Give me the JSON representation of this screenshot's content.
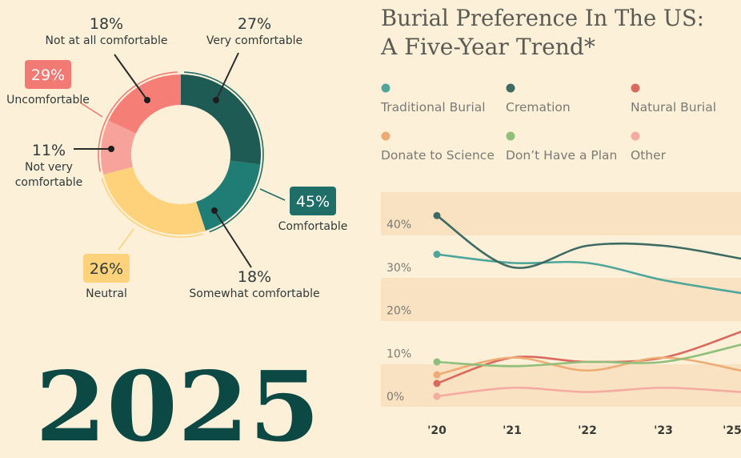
{
  "colors": {
    "background": "#fdf0d8",
    "band": "#f8e2c2",
    "very_comfortable": "#1f5b55",
    "somewhat_comfortable": "#1f7d76",
    "neutral": "#fdd27a",
    "not_very_comfortable": "#f7a29a",
    "not_at_all_comfortable": "#f57e77",
    "comfortable_badge": "#1f6e68",
    "neutral_badge": "#fdd27a",
    "uncomfortable_badge": "#f27a74",
    "year_text": "#0c4944",
    "title_text": "#5a5a55"
  },
  "donut": {
    "segments": [
      {
        "key": "very",
        "pct": "27%",
        "label": "Very comfortable",
        "value": 27
      },
      {
        "key": "somewhat",
        "pct": "18%",
        "label": "Somewhat comfortable",
        "value": 18
      },
      {
        "key": "neutral",
        "pct": "26%",
        "label": "Neutral",
        "value": 26
      },
      {
        "key": "notvery",
        "pct": "11%",
        "label_line1": "Not very",
        "label_line2": "comfortable",
        "value": 11
      },
      {
        "key": "notatall",
        "pct": "18%",
        "label": "Not at all comfortable",
        "value": 18
      }
    ],
    "groups": {
      "comfortable": {
        "pct": "45%",
        "label": "Comfortable"
      },
      "neutral": {
        "pct": "26%",
        "label": "Neutral"
      },
      "uncomfortable": {
        "pct": "29%",
        "label": "Uncomfortable"
      }
    }
  },
  "year": "2025",
  "chart_title_line1": "Burial Preference In The US:",
  "chart_title_line2": "A Five-Year Trend*",
  "chart_data": [
    {
      "type": "pie",
      "categories": [
        "Very comfortable",
        "Somewhat comfortable",
        "Neutral",
        "Not very comfortable",
        "Not at all comfortable"
      ],
      "values": [
        27,
        18,
        26,
        11,
        18
      ],
      "groups": [
        {
          "name": "Comfortable",
          "value": 45
        },
        {
          "name": "Neutral",
          "value": 26
        },
        {
          "name": "Uncomfortable",
          "value": 29
        }
      ]
    },
    {
      "type": "line",
      "title": "Burial Preference In The US: A Five-Year Trend*",
      "x": [
        "'20",
        "'21",
        "'22",
        "'23",
        "'25"
      ],
      "ylim": [
        -2,
        50
      ],
      "yticks": [
        "40%",
        "30%",
        "20%",
        "10%",
        "0%"
      ],
      "legend_placement": "top",
      "series": [
        {
          "name": "Traditional Burial",
          "color": "#4ea59a",
          "values": [
            33,
            31,
            31,
            27,
            24
          ]
        },
        {
          "name": "Cremation",
          "color": "#3d6a63",
          "values": [
            42,
            30,
            35,
            35,
            32
          ]
        },
        {
          "name": "Natural Burial",
          "color": "#d96a5e",
          "values": [
            3,
            9,
            8,
            9,
            15
          ]
        },
        {
          "name": "Donate to Science",
          "color": "#eeac74",
          "values": [
            5,
            9,
            6,
            9,
            6
          ]
        },
        {
          "name": "Don’t Have a Plan",
          "color": "#8fbf7a",
          "values": [
            8,
            7,
            8,
            8,
            12
          ]
        },
        {
          "name": "Other",
          "color": "#f5aba1",
          "values": [
            0,
            2,
            1,
            2,
            1
          ]
        }
      ]
    }
  ]
}
